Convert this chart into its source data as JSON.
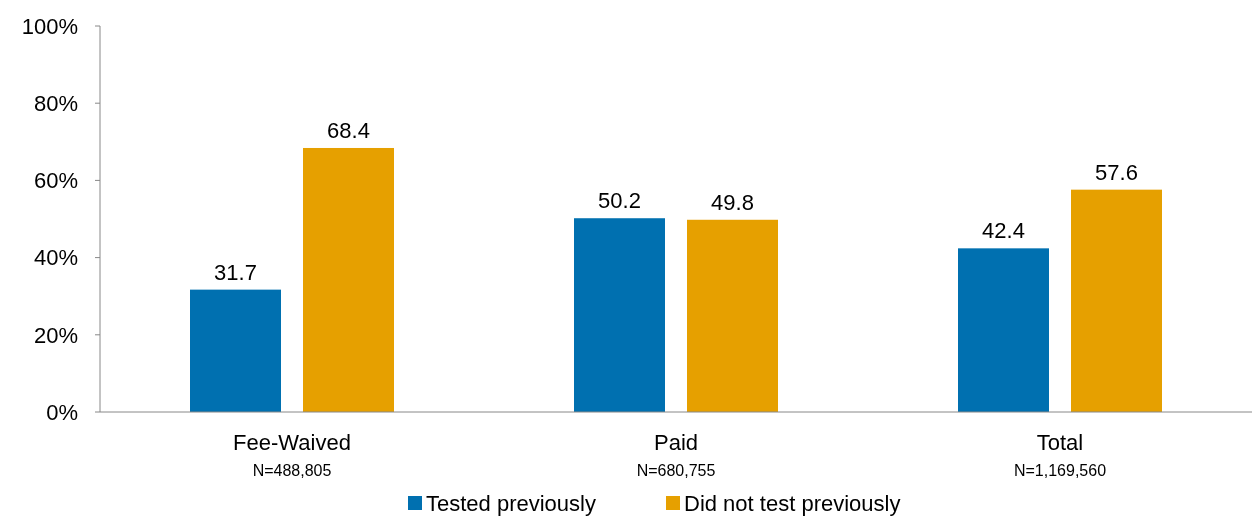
{
  "chart_data": {
    "type": "bar",
    "categories": [
      "Fee-Waived\nN=488,805",
      "Paid\nN=680,755",
      "Total\nN=1,169,560"
    ],
    "series": [
      {
        "name": "Tested previously",
        "color": "#0070b0",
        "values": [
          31.7,
          50.2,
          42.4
        ]
      },
      {
        "name": "Did not test previously",
        "color": "#e6a000",
        "values": [
          68.4,
          49.8,
          57.6
        ]
      }
    ],
    "ylim": [
      0,
      100
    ],
    "yticks": [
      {
        "value": 0,
        "label": "0%"
      },
      {
        "value": 20,
        "label": "20%"
      },
      {
        "value": 40,
        "label": "40%"
      },
      {
        "value": 60,
        "label": "60%"
      },
      {
        "value": 80,
        "label": "80%"
      },
      {
        "value": 100,
        "label": "100%"
      }
    ],
    "data_labels": true,
    "legend": "bottom",
    "grid": false
  }
}
